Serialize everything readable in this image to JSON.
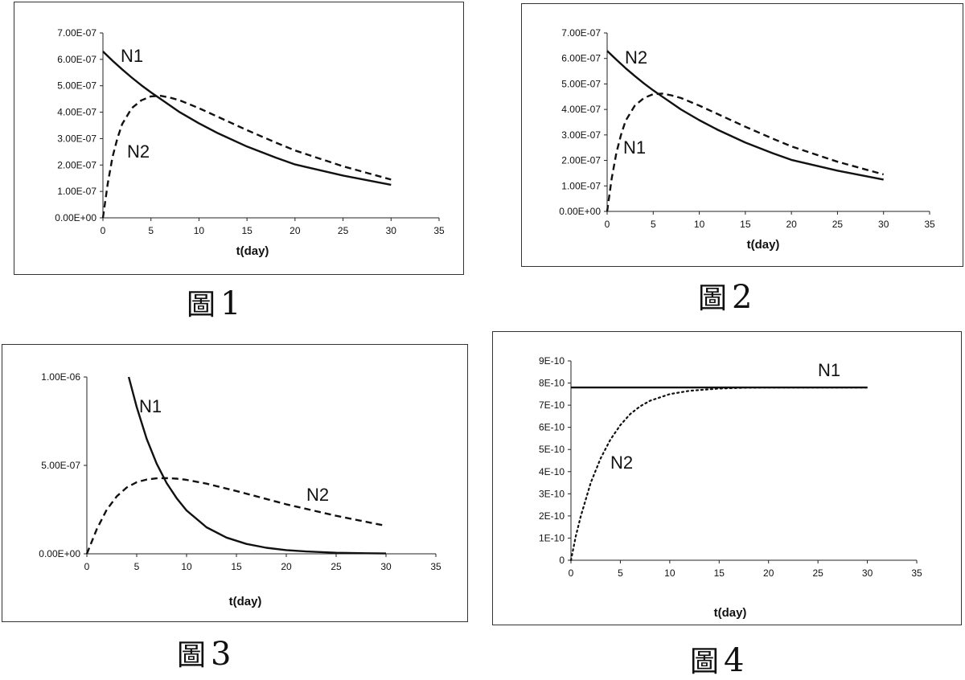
{
  "chart_data": [
    {
      "type": "line",
      "caption": "1",
      "caption_prefix": "圖",
      "xlabel": "t(day)",
      "xticks": [
        "0",
        "5",
        "10",
        "15",
        "20",
        "25",
        "30",
        "35"
      ],
      "yticks": [
        "0.00E+00",
        "1.00E-07",
        "2.00E-07",
        "3.00E-07",
        "4.00E-07",
        "5.00E-07",
        "6.00E-07",
        "7.00E-07"
      ],
      "xlim": [
        0,
        35
      ],
      "ylim": [
        0,
        7e-07
      ],
      "series": [
        {
          "name": "N1",
          "style": "solid",
          "x": [
            0,
            1,
            2,
            3,
            4,
            5,
            6,
            8,
            10,
            12,
            15,
            18,
            20,
            25,
            30
          ],
          "values": [
            6.3e-07,
            5.95e-07,
            5.62e-07,
            5.31e-07,
            5.02e-07,
            4.75e-07,
            4.5e-07,
            4e-07,
            3.58e-07,
            3.2e-07,
            2.7e-07,
            2.28e-07,
            2.02e-07,
            1.6e-07,
            1.25e-07
          ]
        },
        {
          "name": "N2",
          "style": "dashed",
          "x": [
            0,
            0.5,
            1,
            1.5,
            2,
            3,
            4,
            5,
            6,
            7,
            8,
            10,
            12,
            15,
            18,
            20,
            25,
            30
          ],
          "values": [
            0,
            1.3e-07,
            2.3e-07,
            3e-07,
            3.55e-07,
            4.15e-07,
            4.45e-07,
            4.6e-07,
            4.62e-07,
            4.55e-07,
            4.45e-07,
            4.15e-07,
            3.82e-07,
            3.32e-07,
            2.85e-07,
            2.55e-07,
            1.95e-07,
            1.45e-07
          ]
        }
      ]
    },
    {
      "type": "line",
      "caption": "2",
      "caption_prefix": "圖",
      "xlabel": "t(day)",
      "xticks": [
        "0",
        "5",
        "10",
        "15",
        "20",
        "25",
        "30",
        "35"
      ],
      "yticks": [
        "0.00E+00",
        "1.00E-07",
        "2.00E-07",
        "3.00E-07",
        "4.00E-07",
        "5.00E-07",
        "6.00E-07",
        "7.00E-07"
      ],
      "xlim": [
        0,
        35
      ],
      "ylim": [
        0,
        7e-07
      ],
      "series": [
        {
          "name": "N2",
          "style": "solid",
          "x": [
            0,
            1,
            2,
            3,
            4,
            5,
            6,
            8,
            10,
            12,
            15,
            18,
            20,
            25,
            30
          ],
          "values": [
            6.3e-07,
            5.95e-07,
            5.62e-07,
            5.31e-07,
            5.02e-07,
            4.75e-07,
            4.5e-07,
            4e-07,
            3.58e-07,
            3.2e-07,
            2.7e-07,
            2.28e-07,
            2.02e-07,
            1.6e-07,
            1.25e-07
          ]
        },
        {
          "name": "N1",
          "style": "dashed",
          "x": [
            0,
            0.5,
            1,
            1.5,
            2,
            3,
            4,
            5,
            6,
            7,
            8,
            10,
            12,
            15,
            18,
            20,
            25,
            30
          ],
          "values": [
            0,
            1.3e-07,
            2.3e-07,
            3e-07,
            3.55e-07,
            4.15e-07,
            4.45e-07,
            4.6e-07,
            4.62e-07,
            4.55e-07,
            4.45e-07,
            4.15e-07,
            3.82e-07,
            3.32e-07,
            2.85e-07,
            2.55e-07,
            1.95e-07,
            1.45e-07
          ]
        }
      ]
    },
    {
      "type": "line",
      "caption": "3",
      "caption_prefix": "圖",
      "xlabel": "t(day)",
      "xticks": [
        "0",
        "5",
        "10",
        "15",
        "20",
        "25",
        "30",
        "35"
      ],
      "yticks": [
        "0.00E+00",
        "5.00E-07",
        "1.00E-06"
      ],
      "ytick_values": [
        0,
        5e-07,
        1e-06
      ],
      "xlim": [
        0,
        35
      ],
      "ylim": [
        0,
        1e-06
      ],
      "series": [
        {
          "name": "N1",
          "style": "solid",
          "x": [
            4.2,
            5,
            6,
            7,
            8,
            9,
            10,
            12,
            14,
            16,
            18,
            20,
            22,
            25,
            28,
            30
          ],
          "values": [
            1e-06,
            8.3e-07,
            6.5e-07,
            5.1e-07,
            4e-07,
            3.15e-07,
            2.45e-07,
            1.5e-07,
            9.2e-08,
            5.6e-08,
            3.4e-08,
            2.1e-08,
            1.3e-08,
            6e-09,
            3e-09,
            2e-09
          ]
        },
        {
          "name": "N2",
          "style": "dashed",
          "x": [
            0,
            1,
            2,
            3,
            4,
            5,
            6,
            7,
            8,
            9,
            10,
            12,
            15,
            18,
            20,
            25,
            30
          ],
          "values": [
            0,
            1.4e-07,
            2.5e-07,
            3.25e-07,
            3.75e-07,
            4.05e-07,
            4.2e-07,
            4.27e-07,
            4.28e-07,
            4.25e-07,
            4.18e-07,
            3.97e-07,
            3.55e-07,
            3.1e-07,
            2.8e-07,
            2.15e-07,
            1.58e-07
          ]
        }
      ]
    },
    {
      "type": "line",
      "caption": "4",
      "caption_prefix": "圖",
      "xlabel": "t(day)",
      "xticks": [
        "0",
        "5",
        "10",
        "15",
        "20",
        "25",
        "30",
        "35"
      ],
      "yticks": [
        "0",
        "1E-10",
        "2E-10",
        "3E-10",
        "4E-10",
        "5E-10",
        "6E-10",
        "7E-10",
        "8E-10",
        "9E-10"
      ],
      "xlim": [
        0,
        35
      ],
      "ylim": [
        0,
        9e-10
      ],
      "series": [
        {
          "name": "N1",
          "style": "solid",
          "x": [
            0,
            30
          ],
          "values": [
            7.8e-10,
            7.8e-10
          ]
        },
        {
          "name": "N2",
          "style": "dotted",
          "x": [
            0,
            0.5,
            1,
            2,
            3,
            4,
            5,
            6,
            7,
            8,
            10,
            12,
            15,
            18,
            20,
            25,
            30
          ],
          "values": [
            0,
            1.1e-10,
            2e-10,
            3.5e-10,
            4.6e-10,
            5.45e-10,
            6.1e-10,
            6.6e-10,
            6.95e-10,
            7.2e-10,
            7.5e-10,
            7.65e-10,
            7.75e-10,
            7.79e-10,
            7.8e-10,
            7.8e-10,
            7.8e-10
          ]
        }
      ]
    }
  ]
}
